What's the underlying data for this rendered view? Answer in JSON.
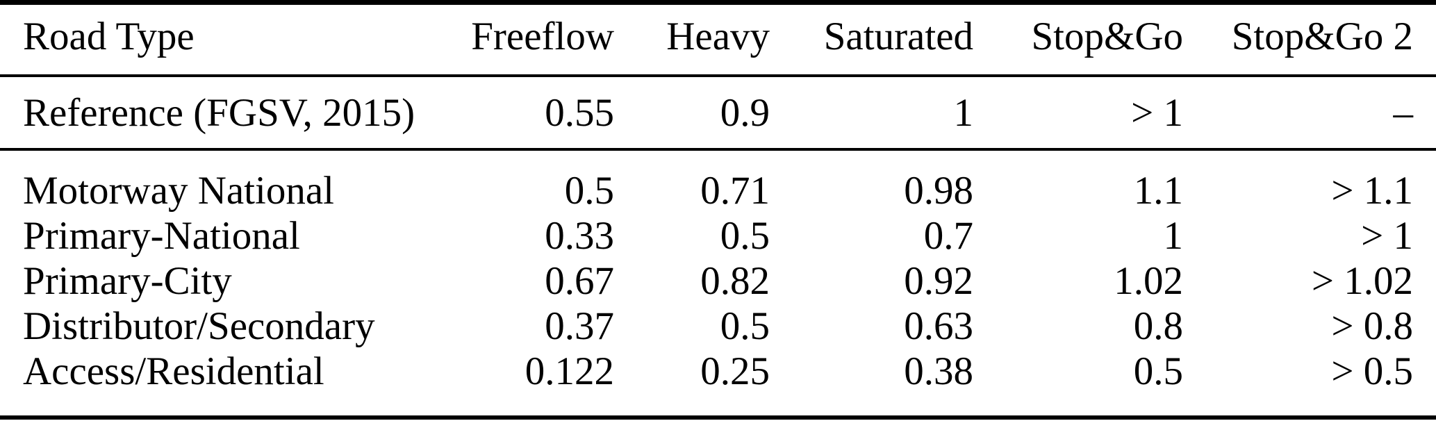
{
  "table": {
    "columns": [
      "Road Type",
      "Freeflow",
      "Heavy",
      "Saturated",
      "Stop&Go",
      "Stop&Go 2"
    ],
    "reference_row": {
      "label": "Reference (FGSV, 2015)",
      "values": [
        "0.55",
        "0.9",
        "1",
        "> 1",
        "–"
      ]
    },
    "rows": [
      {
        "label": "Motorway National",
        "values": [
          "0.5",
          "0.71",
          "0.98",
          "1.1",
          "> 1.1"
        ]
      },
      {
        "label": "Primary-National",
        "values": [
          "0.33",
          "0.5",
          "0.7",
          "1",
          "> 1"
        ]
      },
      {
        "label": "Primary-City",
        "values": [
          "0.67",
          "0.82",
          "0.92",
          "1.02",
          "> 1.02"
        ]
      },
      {
        "label": "Distributor/Secondary",
        "values": [
          "0.37",
          "0.5",
          "0.63",
          "0.8",
          "> 0.8"
        ]
      },
      {
        "label": "Access/Residential",
        "values": [
          "0.122",
          "0.25",
          "0.38",
          "0.5",
          "> 0.5"
        ]
      }
    ]
  },
  "colors": {
    "background": "#ffffff",
    "text": "#000000",
    "rule": "#000000"
  }
}
